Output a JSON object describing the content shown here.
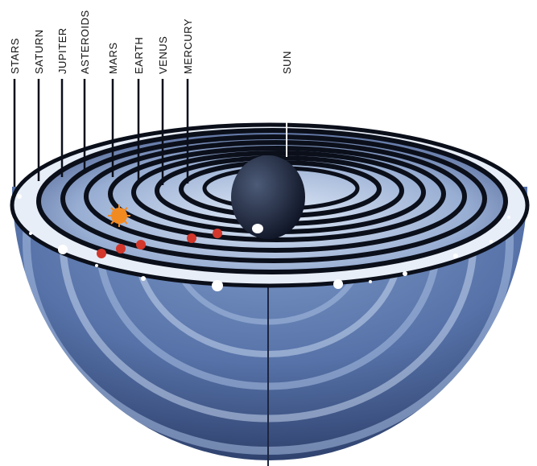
{
  "diagram": {
    "labels": {
      "stars": "STARS",
      "saturn": "SATURN",
      "jupiter": "JUPITER",
      "asteroids": "ASTEROIDS",
      "mars": "MARS",
      "earth": "EARTH",
      "venus": "VENUS",
      "mercury": "MERCURY",
      "sun": "SUN"
    },
    "colors": {
      "bowl_dark": "#2c3f6e",
      "bowl_mid": "#5d7bb0",
      "bowl_light": "#c9d9ef",
      "ring_dark": "#0b0f1a",
      "planet_red": "#d3372c",
      "sun_orange": "#f28a22",
      "stars_white": "#ffffff"
    }
  }
}
